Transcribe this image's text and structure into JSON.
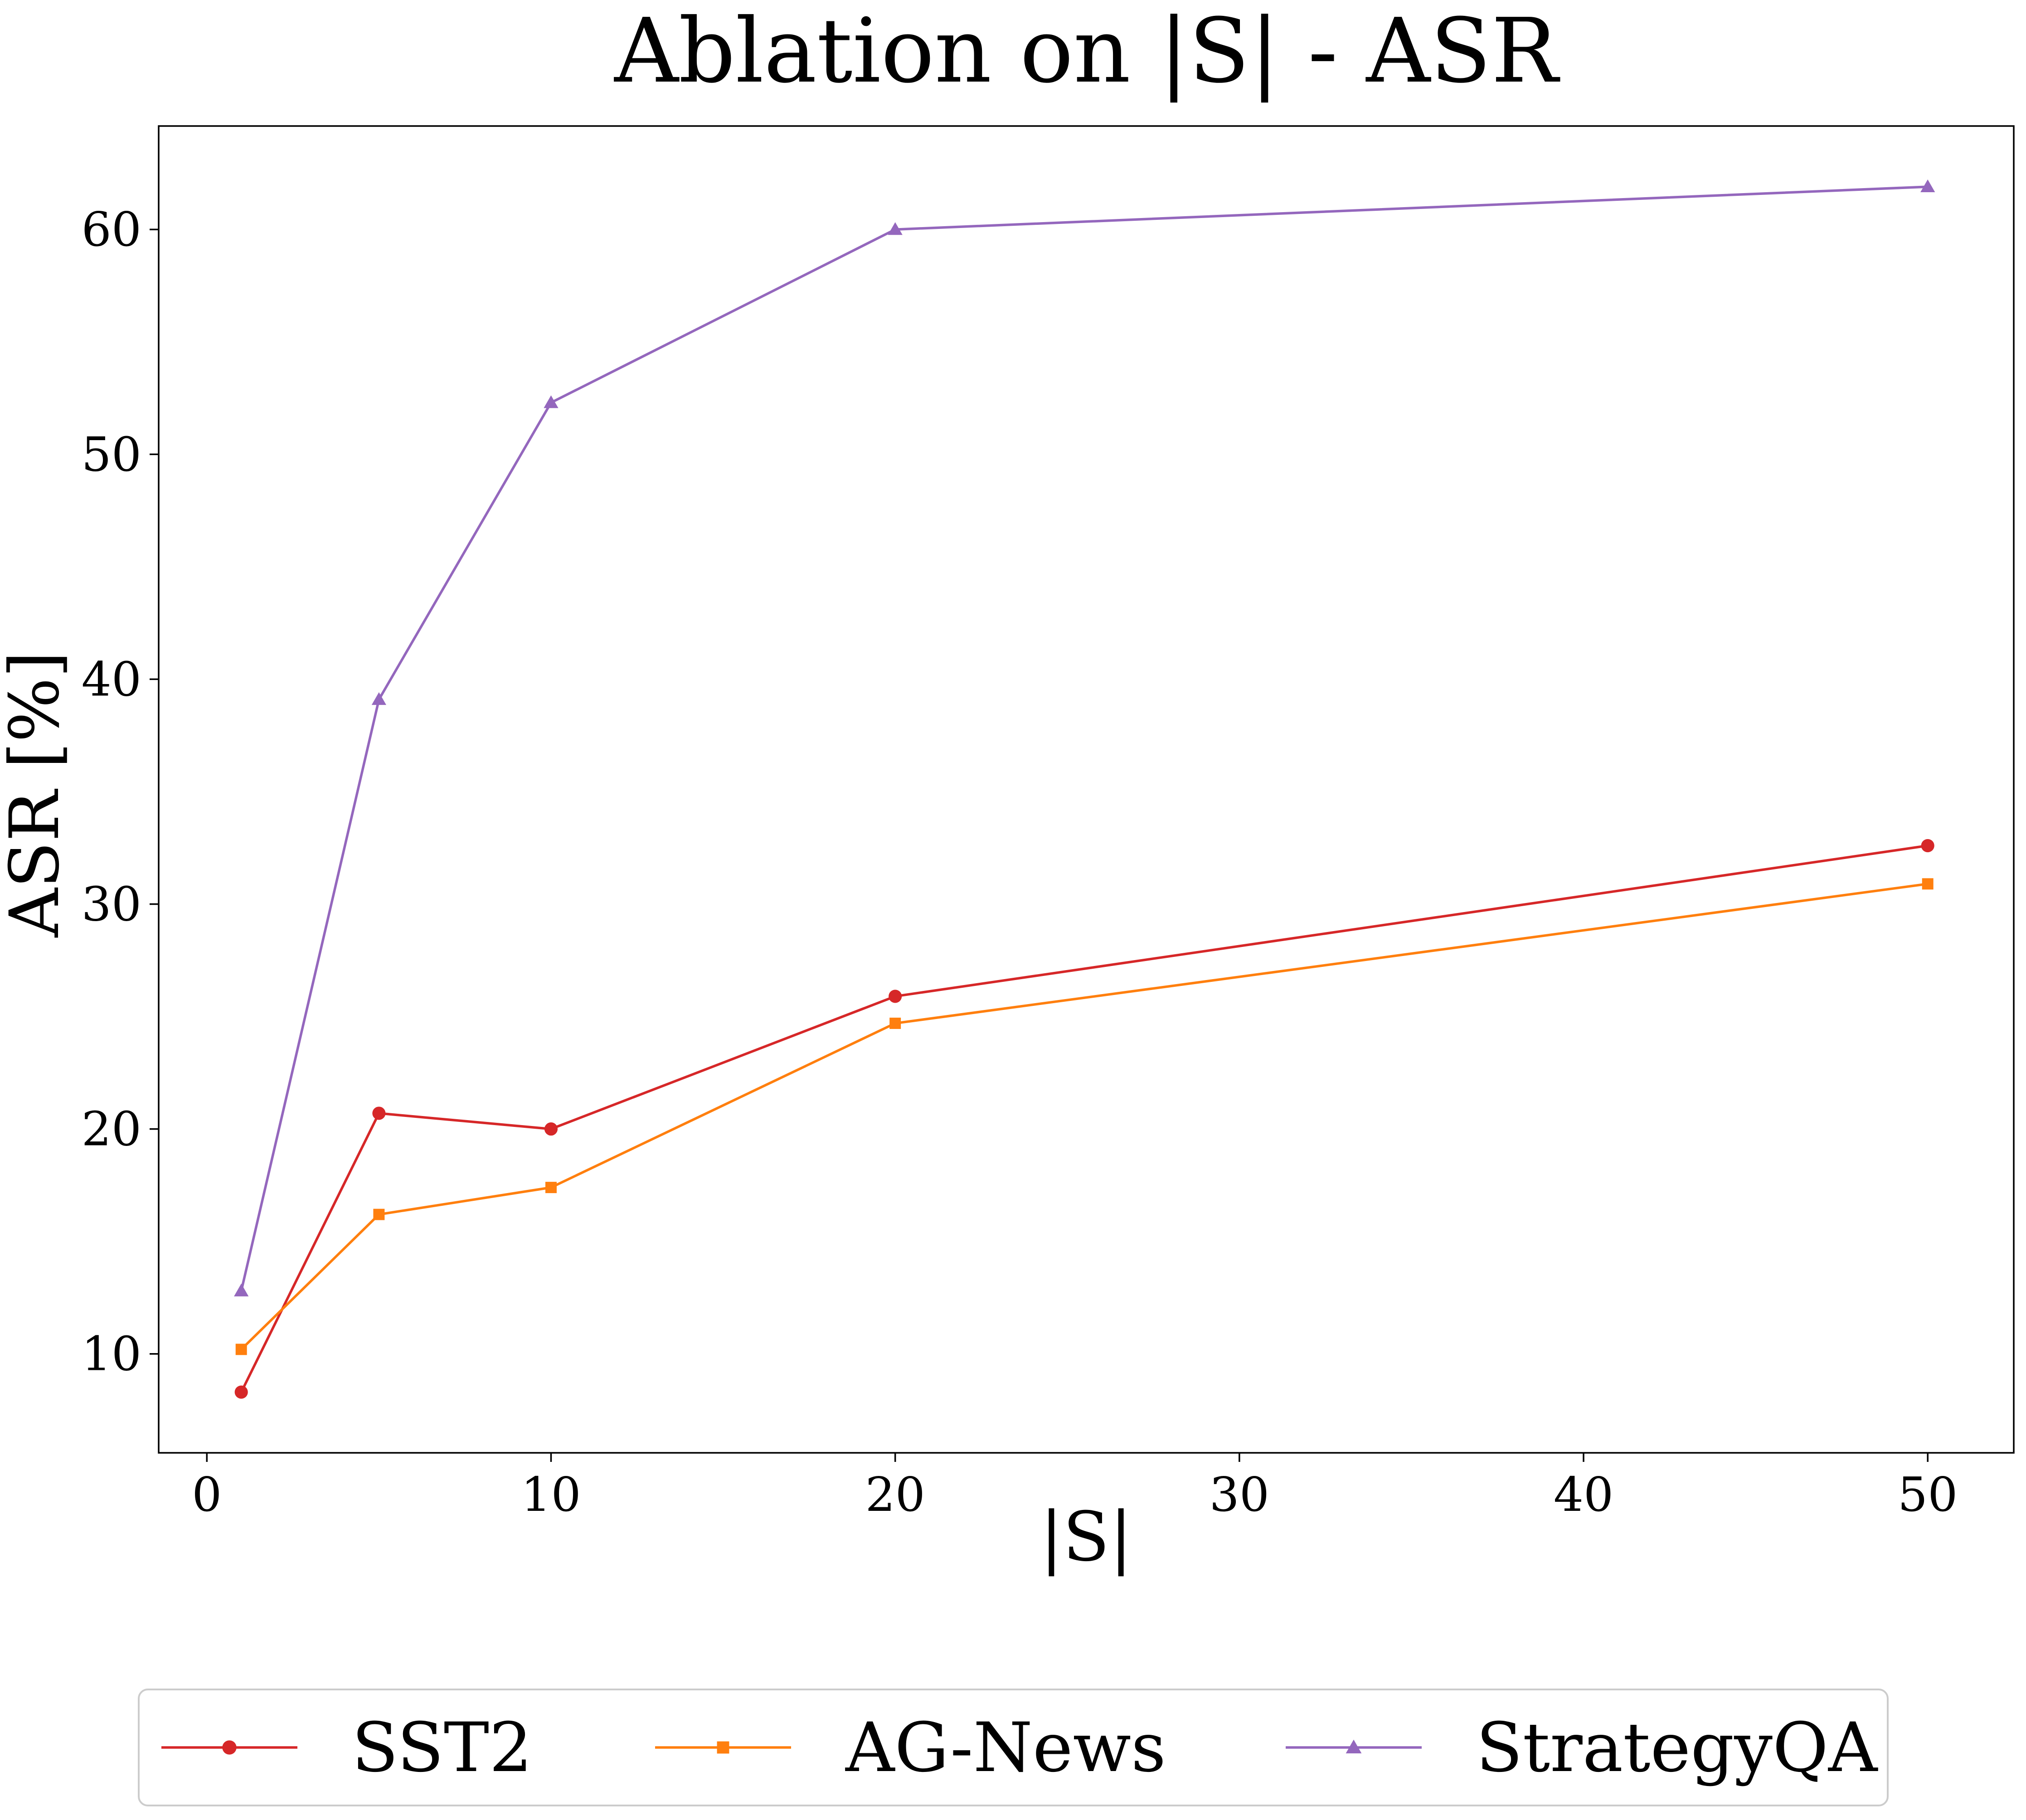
{
  "chart_data": {
    "type": "line",
    "title": "Ablation on |S| - ASR",
    "xlabel": "|S|",
    "ylabel": "ASR [%]",
    "xlim": [
      -1.4,
      52.5
    ],
    "ylim": [
      5.6,
      64.6
    ],
    "xticks": [
      0,
      10,
      20,
      30,
      40,
      50
    ],
    "yticks": [
      10,
      20,
      30,
      40,
      50,
      60
    ],
    "grid": false,
    "legend_position": "bottom-center",
    "x": [
      1,
      5,
      10,
      20,
      50
    ],
    "series": [
      {
        "name": "SST2",
        "color": "#d62728",
        "marker": "circle",
        "values": [
          8.3,
          20.7,
          20.0,
          25.9,
          32.6
        ]
      },
      {
        "name": "AG-News",
        "color": "#ff7f0e",
        "marker": "square",
        "values": [
          10.2,
          16.2,
          17.4,
          24.7,
          30.9
        ]
      },
      {
        "name": "StrategyQA",
        "color": "#9467bd",
        "marker": "triangle",
        "values": [
          12.8,
          39.1,
          52.3,
          60.0,
          61.9
        ]
      }
    ]
  }
}
